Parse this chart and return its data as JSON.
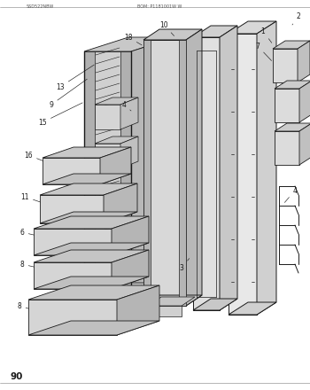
{
  "page_number": "90",
  "background_color": "#ffffff",
  "line_color": "#1a1a1a",
  "fig_width": 3.5,
  "fig_height": 4.4,
  "dpi": 100
}
